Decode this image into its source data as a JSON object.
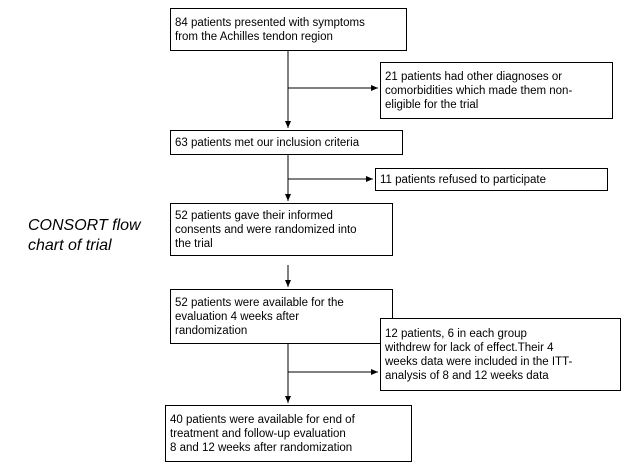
{
  "caption": [
    "CONSORT flow",
    "chart of trial"
  ],
  "nodes": [
    {
      "lines": [
        "84 patients presented with symptoms",
        "from the Achilles tendon region"
      ]
    },
    {
      "lines": [
        "21 patients had other diagnoses or",
        "comorbidities which made them non-",
        "eligible for the trial"
      ]
    },
    {
      "lines": [
        "63 patients met our inclusion criteria"
      ]
    },
    {
      "lines": [
        "11 patients refused to participate"
      ]
    },
    {
      "lines": [
        "52 patients gave their informed",
        "consents and were randomized into",
        "the trial"
      ]
    },
    {
      "lines": [
        "52 patients were available for the",
        "evaluation 4 weeks after",
        "randomization"
      ]
    },
    {
      "lines": [
        "12 patients, 6 in each group",
        "withdrew for lack of effect.Their 4",
        "weeks data were included in the ITT-",
        "analysis of 8 and 12 weeks data"
      ]
    },
    {
      "lines": [
        "40 patients were available for end of",
        "treatment and follow-up evaluation",
        "8 and 12 weeks after randomization"
      ]
    }
  ]
}
